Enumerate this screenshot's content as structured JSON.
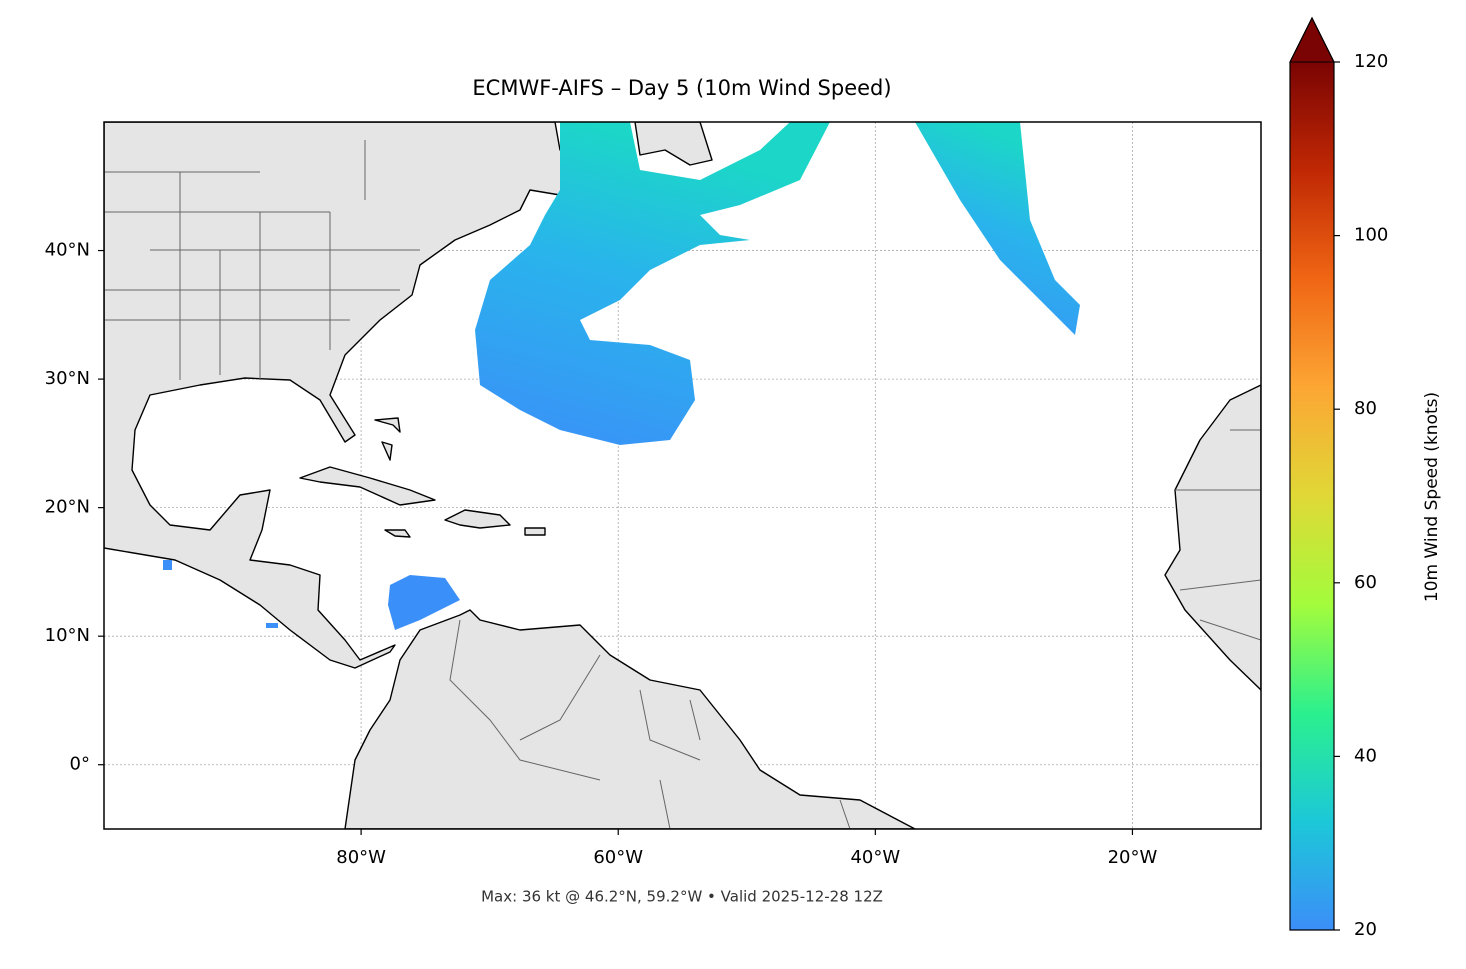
{
  "chart_data": {
    "type": "map",
    "title": "ECMWF-AIFS – Day 5 (10m Wind Speed)",
    "footer": "Max: 36 kt @ 46.2°N, 59.2°W • Valid 2025-12-28 12Z",
    "xlim": [
      -100,
      -10
    ],
    "ylim": [
      -5,
      50
    ],
    "xticks": [
      {
        "value": -80,
        "label": "80°W"
      },
      {
        "value": -60,
        "label": "60°W"
      },
      {
        "value": -40,
        "label": "40°W"
      },
      {
        "value": -20,
        "label": "20°W"
      }
    ],
    "yticks": [
      {
        "value": 0,
        "label": "0°"
      },
      {
        "value": 10,
        "label": "10°N"
      },
      {
        "value": 20,
        "label": "20°N"
      },
      {
        "value": 30,
        "label": "30°N"
      },
      {
        "value": 40,
        "label": "40°N"
      }
    ],
    "grid": true,
    "colorbar": {
      "label": "10m Wind Speed (knots)",
      "lim": [
        20,
        120
      ],
      "ticks": [
        20,
        40,
        60,
        80,
        100,
        120
      ],
      "colors": [
        "#3c8ef8",
        "#1cc8d8",
        "#2bf08e",
        "#a3fc3c",
        "#e0d836",
        "#fca634",
        "#f06614",
        "#c02804",
        "#7a0403"
      ],
      "extend": "max"
    }
  }
}
